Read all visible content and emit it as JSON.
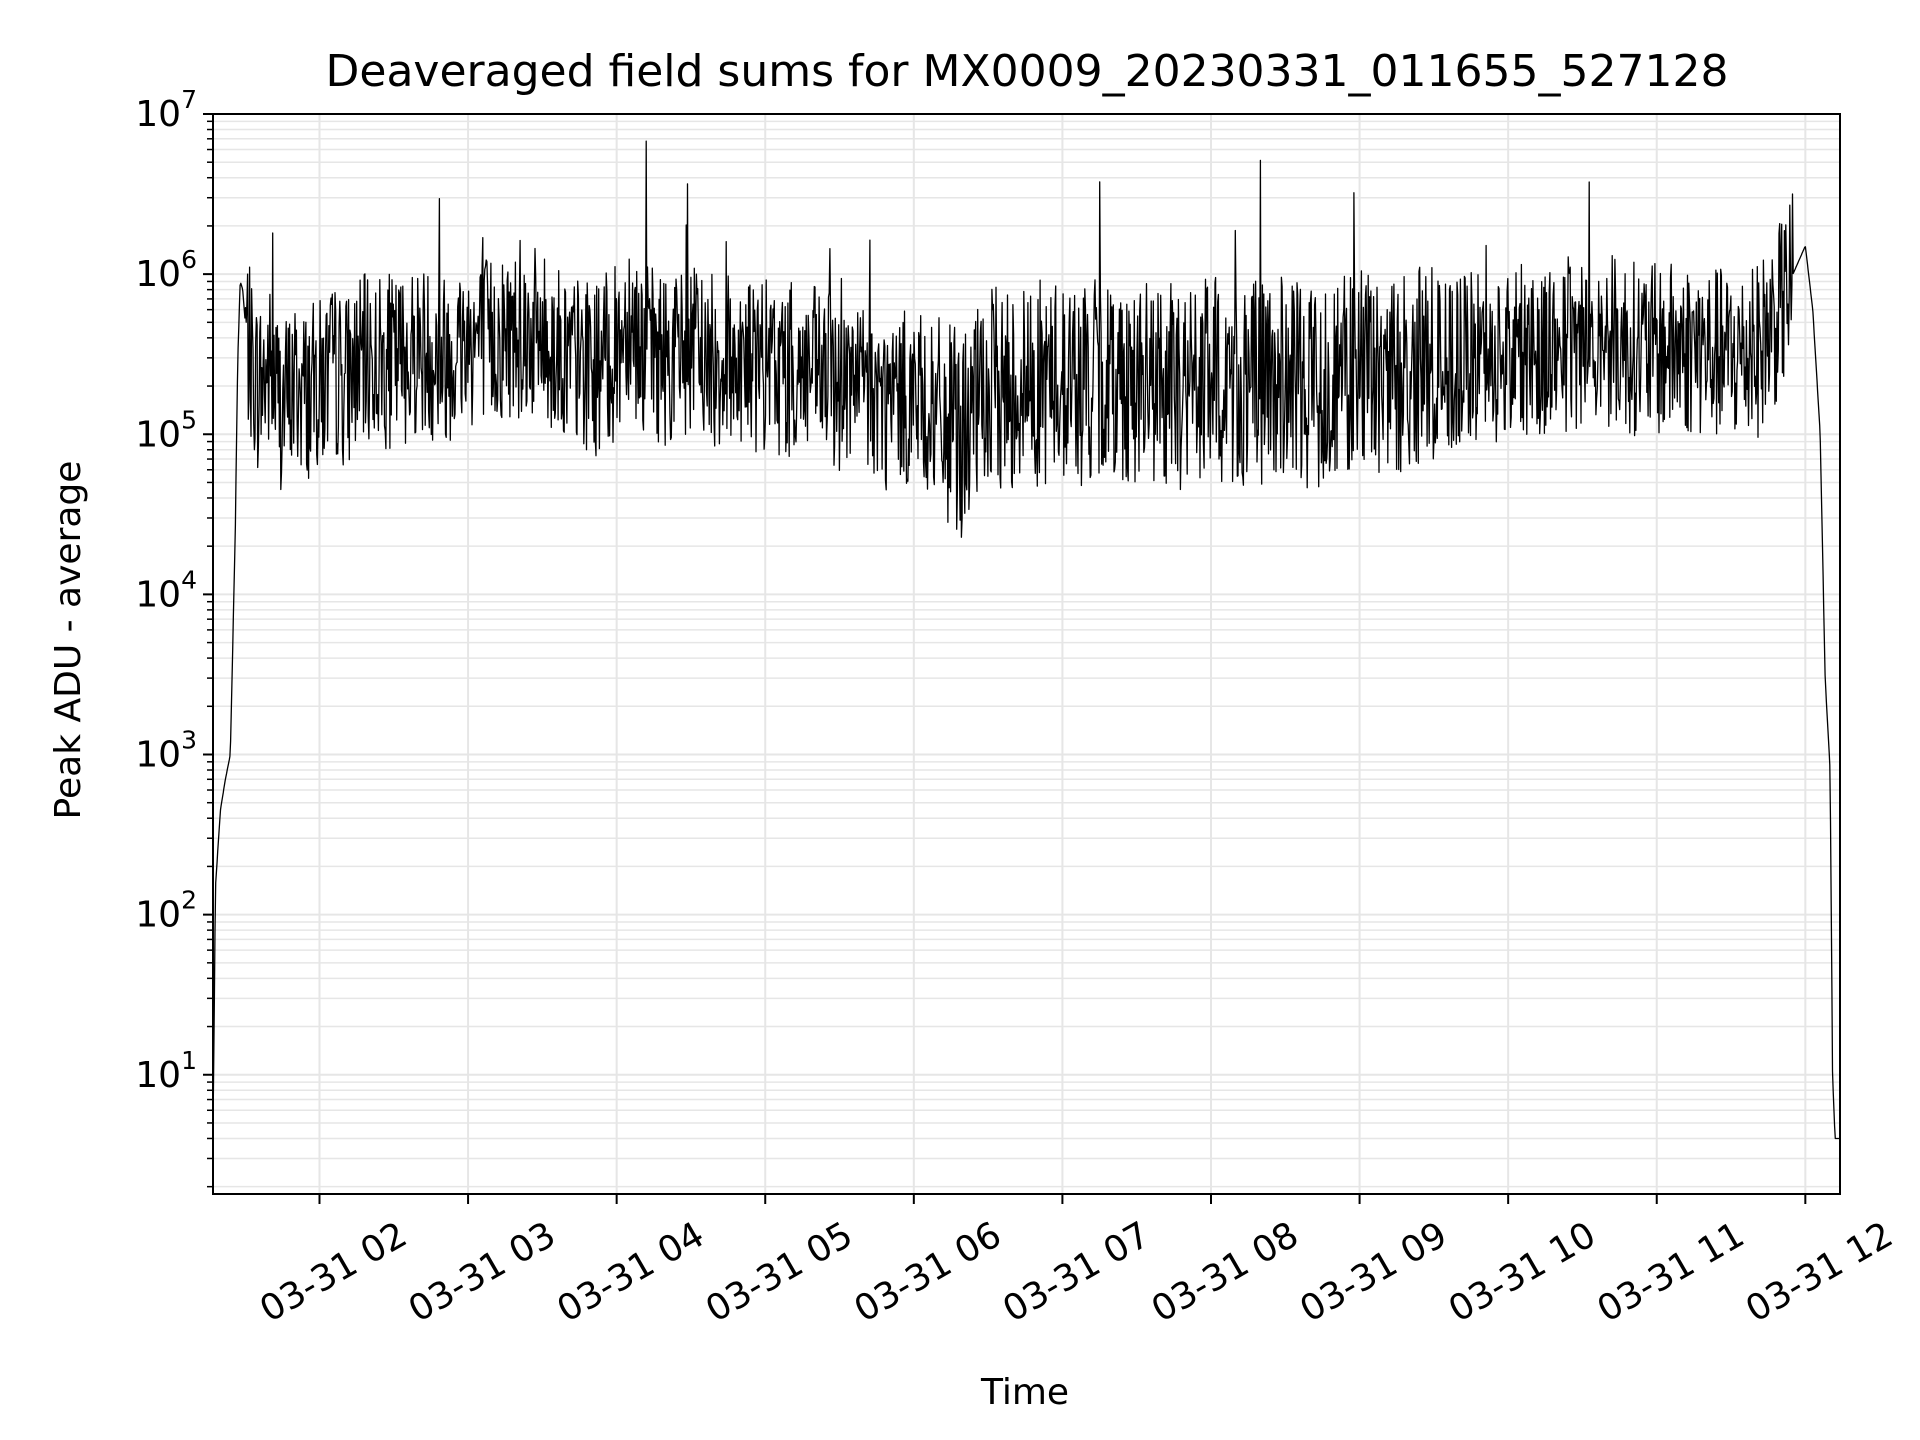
{
  "chart_data": {
    "type": "line",
    "title": "Deaveraged field sums for MX0009_20230331_011655_527128",
    "xlabel": "Time",
    "ylabel": "Peak ADU - average",
    "yscale": "log",
    "ylim": [
      1.8,
      10000000
    ],
    "xlim": [
      "03-31 01:17",
      "03-31 12:14"
    ],
    "grid": true,
    "x_ticks": [
      "03-31 02",
      "03-31 03",
      "03-31 04",
      "03-31 05",
      "03-31 06",
      "03-31 07",
      "03-31 08",
      "03-31 09",
      "03-31 10",
      "03-31 11",
      "03-31 12"
    ],
    "y_ticks": [
      {
        "base": "10",
        "exp": "1",
        "value": 10
      },
      {
        "base": "10",
        "exp": "2",
        "value": 100
      },
      {
        "base": "10",
        "exp": "3",
        "value": 1000
      },
      {
        "base": "10",
        "exp": "4",
        "value": 10000
      },
      {
        "base": "10",
        "exp": "5",
        "value": 100000
      },
      {
        "base": "10",
        "exp": "6",
        "value": 1000000
      },
      {
        "base": "10",
        "exp": "7",
        "value": 10000000
      }
    ],
    "line_color": "#000000",
    "grid_color": "#e6e6e6",
    "series": [
      {
        "x": [
          "03-31 01:17",
          "03-31 01:18",
          "03-31 01:20",
          "03-31 01:22",
          "03-31 01:24",
          "03-31 01:26",
          "03-31 01:27",
          "03-31 01:28",
          "03-31 01:29",
          "03-31 01:30",
          "03-31 01:32",
          "03-31 01:35",
          "03-31 01:40",
          "03-31 01:45",
          "03-31 01:50",
          "03-31 01:55",
          "03-31 02:00",
          "03-31 02:05",
          "03-31 02:10",
          "03-31 02:20",
          "03-31 02:30",
          "03-31 02:40",
          "03-31 02:50",
          "03-31 03:00",
          "03-31 03:10",
          "03-31 03:20",
          "03-31 03:30",
          "03-31 03:40",
          "03-31 03:50",
          "03-31 04:00",
          "03-31 04:05",
          "03-31 04:10",
          "03-31 04:20",
          "03-31 04:30",
          "03-31 04:40",
          "03-31 04:50",
          "03-31 05:00",
          "03-31 05:10",
          "03-31 05:20",
          "03-31 05:30",
          "03-31 05:40",
          "03-31 05:50",
          "03-31 06:00",
          "03-31 06:10",
          "03-31 06:20",
          "03-31 06:30",
          "03-31 06:40",
          "03-31 06:50",
          "03-31 07:00",
          "03-31 07:10",
          "03-31 07:20",
          "03-31 07:30",
          "03-31 07:40",
          "03-31 07:50",
          "03-31 08:00",
          "03-31 08:10",
          "03-31 08:20",
          "03-31 08:30",
          "03-31 08:40",
          "03-31 08:50",
          "03-31 09:00",
          "03-31 09:10",
          "03-31 09:20",
          "03-31 09:30",
          "03-31 09:40",
          "03-31 09:50",
          "03-31 10:00",
          "03-31 10:10",
          "03-31 10:20",
          "03-31 10:30",
          "03-31 10:40",
          "03-31 10:50",
          "03-31 11:00",
          "03-31 11:10",
          "03-31 11:20",
          "03-31 11:30",
          "03-31 11:40",
          "03-31 11:50",
          "03-31 11:55",
          "03-31 12:00",
          "03-31 12:03",
          "03-31 12:06",
          "03-31 12:08",
          "03-31 12:10",
          "03-31 12:11",
          "03-31 12:12",
          "03-31 12:14"
        ],
        "y": [
          4.5,
          150,
          450,
          700,
          1000,
          25000,
          300000,
          900000,
          800000,
          500000,
          300000,
          200000,
          250000,
          150000,
          200000,
          180000,
          200000,
          250000,
          220000,
          300000,
          280000,
          350000,
          300000,
          400000,
          380000,
          450000,
          400000,
          300000,
          250000,
          320000,
          600000,
          350000,
          300000,
          330000,
          280000,
          300000,
          260000,
          250000,
          240000,
          200000,
          190000,
          150000,
          180000,
          120000,
          100000,
          180000,
          200000,
          210000,
          220000,
          200000,
          230000,
          210000,
          200000,
          190000,
          220000,
          200000,
          210000,
          220000,
          200000,
          230000,
          240000,
          220000,
          250000,
          260000,
          280000,
          300000,
          320000,
          340000,
          350000,
          380000,
          400000,
          350000,
          330000,
          350000,
          330000,
          300000,
          320000,
          600000,
          1000000,
          1500000,
          600000,
          100000,
          3000,
          800,
          10,
          4,
          4
        ]
      }
    ]
  }
}
